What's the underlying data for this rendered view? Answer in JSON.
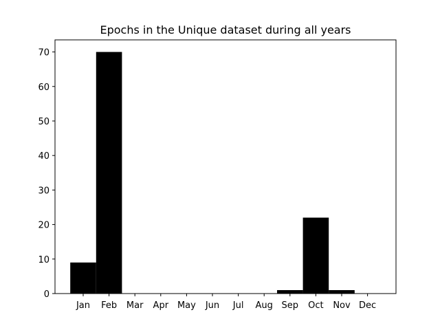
{
  "chart_data": {
    "type": "bar",
    "title": "Epochs in the Unique dataset during all years",
    "xlabel": "",
    "ylabel": "",
    "categories": [
      "Jan",
      "Feb",
      "Mar",
      "Apr",
      "May",
      "Jun",
      "Jul",
      "Aug",
      "Sep",
      "Oct",
      "Nov",
      "Dec"
    ],
    "values": [
      9,
      70,
      0,
      0,
      0,
      0,
      0,
      0,
      1,
      22,
      1,
      0
    ],
    "ylim": [
      0,
      73.5
    ],
    "yticks": [
      0,
      10,
      20,
      30,
      40,
      50,
      60,
      70
    ],
    "bar_color": "#000000",
    "grid": false,
    "legend": "none"
  }
}
